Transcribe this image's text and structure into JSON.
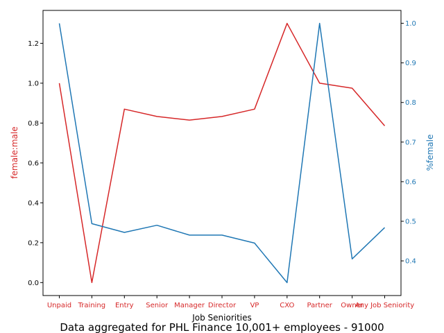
{
  "chart_data": {
    "type": "line",
    "categories": [
      "Unpaid",
      "Training",
      "Entry",
      "Senior",
      "Manager",
      "Director",
      "VP",
      "CXO",
      "Partner",
      "Owner",
      "Any Job Seniority"
    ],
    "xlabel": "Job Seniorities",
    "caption": "Data aggregated for PHL Finance 10,001+ employees - 91000",
    "series": [
      {
        "axis": "left",
        "color": "#d62728",
        "values": [
          1.0,
          0.0,
          0.87,
          0.833,
          0.815,
          0.833,
          0.87,
          1.3,
          1.0,
          0.975,
          0.786
        ]
      },
      {
        "axis": "right",
        "color": "#1f77b4",
        "values": [
          1.0,
          0.494,
          0.472,
          0.49,
          0.465,
          0.465,
          0.445,
          0.345,
          1.0,
          0.405,
          0.484
        ]
      }
    ],
    "left_axis": {
      "label": "female:male",
      "color": "#d62728",
      "ylim": [
        -0.065,
        1.365
      ],
      "ticks": [
        "0.0",
        "0.2",
        "0.4",
        "0.6",
        "0.8",
        "1.0",
        "1.2"
      ]
    },
    "right_axis": {
      "label": "%female",
      "color": "#1f77b4",
      "ylim": [
        0.3125,
        1.0325
      ],
      "ticks": [
        "0.4",
        "0.5",
        "0.6",
        "0.7",
        "0.8",
        "0.9",
        "1.0"
      ]
    }
  }
}
